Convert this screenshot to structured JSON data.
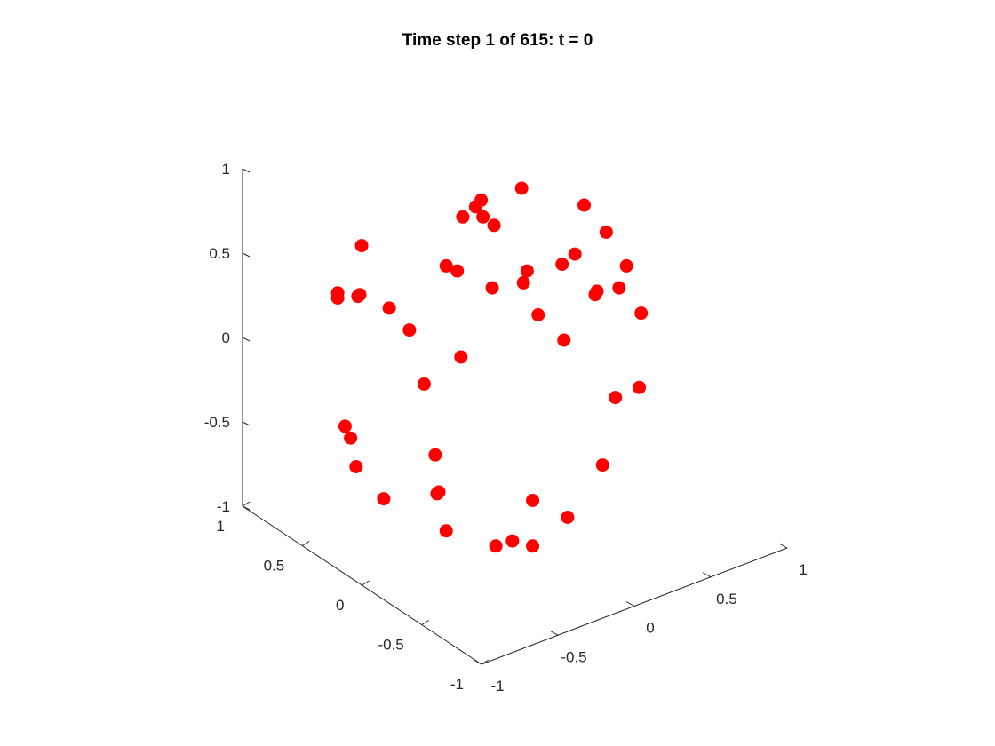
{
  "chart_data": {
    "type": "scatter",
    "title": "Time step 1 of 615: t = 0",
    "xlim": [
      -1,
      1
    ],
    "ylim": [
      -1,
      1
    ],
    "zlim": [
      -1,
      1
    ],
    "x_ticks": [
      "-1",
      "-0.5",
      "0",
      "0.5",
      "1"
    ],
    "y_ticks": [
      "-1",
      "-0.5",
      "0",
      "0.5",
      "1"
    ],
    "z_ticks": [
      "-1",
      "-0.5",
      "0",
      "0.5",
      "1"
    ],
    "grid": false,
    "marker_color": "#ff0000",
    "projection": "3d",
    "points_screen_normalized_note": "",
    "points": [
      {
        "h": 0.02,
        "v": 0.9
      },
      {
        "h": -0.2,
        "v": 0.83
      },
      {
        "h": -0.23,
        "v": 0.79
      },
      {
        "h": 0.36,
        "v": 0.8
      },
      {
        "h": -0.3,
        "v": 0.73
      },
      {
        "h": -0.19,
        "v": 0.73
      },
      {
        "h": -0.13,
        "v": 0.68
      },
      {
        "h": 0.48,
        "v": 0.64
      },
      {
        "h": -0.85,
        "v": 0.56
      },
      {
        "h": 0.31,
        "v": 0.51
      },
      {
        "h": 0.24,
        "v": 0.45
      },
      {
        "h": 0.59,
        "v": 0.44
      },
      {
        "h": -0.39,
        "v": 0.44
      },
      {
        "h": -0.33,
        "v": 0.41
      },
      {
        "h": 0.05,
        "v": 0.41
      },
      {
        "h": 0.03,
        "v": 0.34
      },
      {
        "h": -0.14,
        "v": 0.31
      },
      {
        "h": 0.55,
        "v": 0.31
      },
      {
        "h": 0.43,
        "v": 0.29
      },
      {
        "h": 0.42,
        "v": 0.27
      },
      {
        "h": -0.98,
        "v": 0.28
      },
      {
        "h": -0.98,
        "v": 0.25
      },
      {
        "h": -0.86,
        "v": 0.27
      },
      {
        "h": -0.87,
        "v": 0.26
      },
      {
        "h": -0.7,
        "v": 0.19
      },
      {
        "h": 0.11,
        "v": 0.15
      },
      {
        "h": 0.67,
        "v": 0.16
      },
      {
        "h": -0.59,
        "v": 0.06
      },
      {
        "h": 0.25,
        "v": 0.0
      },
      {
        "h": -0.31,
        "v": -0.1
      },
      {
        "h": -0.51,
        "v": -0.26
      },
      {
        "h": 0.66,
        "v": -0.28
      },
      {
        "h": 0.53,
        "v": -0.34
      },
      {
        "h": -0.94,
        "v": -0.51
      },
      {
        "h": -0.91,
        "v": -0.58
      },
      {
        "h": -0.45,
        "v": -0.68
      },
      {
        "h": -0.88,
        "v": -0.75
      },
      {
        "h": 0.46,
        "v": -0.74
      },
      {
        "h": -0.44,
        "v": -0.91
      },
      {
        "h": -0.43,
        "v": -0.9
      },
      {
        "h": 0.08,
        "v": -0.95
      },
      {
        "h": -0.73,
        "v": -0.94
      },
      {
        "h": 0.27,
        "v": -1.05
      },
      {
        "h": -0.39,
        "v": -1.13
      },
      {
        "h": -0.12,
        "v": -1.22
      },
      {
        "h": -0.03,
        "v": -1.19
      },
      {
        "h": 0.08,
        "v": -1.22
      }
    ]
  }
}
